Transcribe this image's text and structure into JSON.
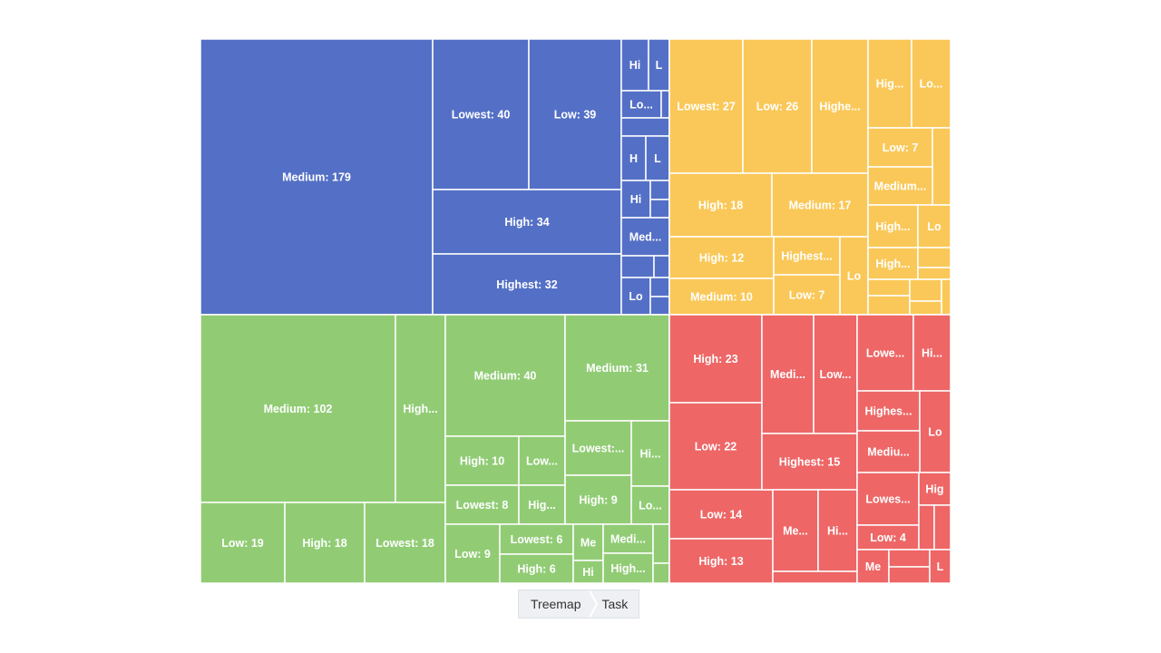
{
  "chart_data": {
    "type": "treemap",
    "colors": {
      "group-1": "#5470c6",
      "group-2": "#fac858",
      "group-3": "#91cc75",
      "group-4": "#ee6666"
    },
    "groups": [
      {
        "key": "group-1",
        "items": [
          {
            "label": "Medium: 179",
            "value": 179
          },
          {
            "label": "Lowest: 40",
            "value": 40
          },
          {
            "label": "Low: 39",
            "value": 39
          },
          {
            "label": "High: 34",
            "value": 34
          },
          {
            "label": "Highest: 32",
            "value": 32
          },
          {
            "label": "Hi",
            "value": 4
          },
          {
            "label": "L",
            "value": 3
          },
          {
            "label": "Lo...",
            "value": 4
          },
          {
            "label": "",
            "value": 1
          },
          {
            "label": "",
            "value": 2
          },
          {
            "label": "H",
            "value": 3
          },
          {
            "label": "L",
            "value": 3
          },
          {
            "label": "Hi",
            "value": 3
          },
          {
            "label": "",
            "value": 1
          },
          {
            "label": "",
            "value": 1
          },
          {
            "label": "Med...",
            "value": 4
          },
          {
            "label": "",
            "value": 2
          },
          {
            "label": "",
            "value": 1
          },
          {
            "label": "Lo",
            "value": 3
          },
          {
            "label": "",
            "value": 1
          },
          {
            "label": "",
            "value": 1
          }
        ]
      },
      {
        "key": "group-2",
        "items": [
          {
            "label": "Lowest: 27",
            "value": 27
          },
          {
            "label": "Low: 26",
            "value": 26
          },
          {
            "label": "Highe...",
            "value": 20
          },
          {
            "label": "Hig...",
            "value": 9
          },
          {
            "label": "Lo...",
            "value": 8
          },
          {
            "label": "Low: 7",
            "value": 7
          },
          {
            "label": "",
            "value": 4
          },
          {
            "label": "High: 18",
            "value": 18
          },
          {
            "label": "Medium: 17",
            "value": 17
          },
          {
            "label": "Medium...",
            "value": 6
          },
          {
            "label": "High: 12",
            "value": 12
          },
          {
            "label": "Highest...",
            "value": 8
          },
          {
            "label": "Lo",
            "value": 6
          },
          {
            "label": "High...",
            "value": 5
          },
          {
            "label": "Lo",
            "value": 4
          },
          {
            "label": "Medium: 10",
            "value": 10
          },
          {
            "label": "Low: 7",
            "value": 7
          },
          {
            "label": "High...",
            "value": 4
          },
          {
            "label": "",
            "value": 2
          },
          {
            "label": "",
            "value": 1
          },
          {
            "label": "",
            "value": 2
          },
          {
            "label": "",
            "value": 2
          },
          {
            "label": "",
            "value": 1
          },
          {
            "label": "",
            "value": 1
          },
          {
            "label": "",
            "value": 1
          }
        ]
      },
      {
        "key": "group-3",
        "items": [
          {
            "label": "Medium: 102",
            "value": 102
          },
          {
            "label": "High...",
            "value": 25
          },
          {
            "label": "Low: 19",
            "value": 19
          },
          {
            "label": "High: 18",
            "value": 18
          },
          {
            "label": "Lowest: 18",
            "value": 18
          },
          {
            "label": "Medium: 40",
            "value": 40
          },
          {
            "label": "Medium: 31",
            "value": 31
          },
          {
            "label": "High: 10",
            "value": 10
          },
          {
            "label": "Low...",
            "value": 9
          },
          {
            "label": "Lowest:...",
            "value": 9
          },
          {
            "label": "Hi...",
            "value": 7
          },
          {
            "label": "Lowest: 8",
            "value": 8
          },
          {
            "label": "Hig...",
            "value": 8
          },
          {
            "label": "High: 9",
            "value": 9
          },
          {
            "label": "Lo...",
            "value": 5
          },
          {
            "label": "Low: 9",
            "value": 9
          },
          {
            "label": "Lowest: 6",
            "value": 6
          },
          {
            "label": "High: 6",
            "value": 6
          },
          {
            "label": "Me",
            "value": 3
          },
          {
            "label": "Hi",
            "value": 2
          },
          {
            "label": "Medi...",
            "value": 3
          },
          {
            "label": "High...",
            "value": 3
          },
          {
            "label": "",
            "value": 2
          },
          {
            "label": "",
            "value": 1
          }
        ]
      },
      {
        "key": "group-4",
        "items": [
          {
            "label": "High: 23",
            "value": 23
          },
          {
            "label": "Low: 22",
            "value": 22
          },
          {
            "label": "Low: 14",
            "value": 14
          },
          {
            "label": "High: 13",
            "value": 13
          },
          {
            "label": "Medi...",
            "value": 13
          },
          {
            "label": "Low...",
            "value": 13
          },
          {
            "label": "Highest: 15",
            "value": 15
          },
          {
            "label": "Me...",
            "value": 9
          },
          {
            "label": "Hi...",
            "value": 9
          },
          {
            "label": "",
            "value": 1
          },
          {
            "label": "Lowe...",
            "value": 7
          },
          {
            "label": "Hi...",
            "value": 5
          },
          {
            "label": "Highes...",
            "value": 5
          },
          {
            "label": "Lo",
            "value": 6
          },
          {
            "label": "Mediu...",
            "value": 5
          },
          {
            "label": "Lowes...",
            "value": 5
          },
          {
            "label": "Hig",
            "value": 2
          },
          {
            "label": "Low: 4",
            "value": 4
          },
          {
            "label": "",
            "value": 1
          },
          {
            "label": "",
            "value": 1
          },
          {
            "label": "Me",
            "value": 2
          },
          {
            "label": "",
            "value": 2
          },
          {
            "label": "",
            "value": 1
          },
          {
            "label": "L",
            "value": 2
          }
        ]
      }
    ]
  },
  "breadcrumb": {
    "items": [
      "Treemap",
      "Task"
    ]
  }
}
